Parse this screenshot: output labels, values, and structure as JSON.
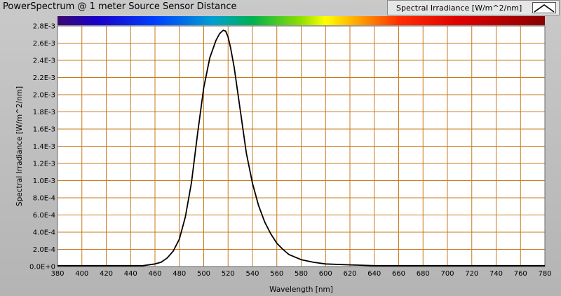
{
  "window": {
    "title": "PowerSpectrum @ 1 meter Source Sensor Distance",
    "legend_label": "Spectral Irradiance [W/m^2/nm]"
  },
  "colors": {
    "grid": "#c8781e",
    "plot_bg": "#ffffff",
    "curve": "#000000"
  },
  "chart_data": {
    "type": "line",
    "title": "PowerSpectrum @ 1 meter Source Sensor Distance",
    "xlabel": "Wavelength [nm]",
    "ylabel": "Spectral Irradiance [W/m^2/nm]",
    "xlim": [
      380,
      780
    ],
    "ylim": [
      0,
      0.0028
    ],
    "grid": true,
    "legend_position": "top-right",
    "color_bar": "visible spectrum gradient above plot",
    "x_ticks": [
      "380",
      "400",
      "420",
      "440",
      "460",
      "480",
      "500",
      "520",
      "540",
      "560",
      "580",
      "600",
      "620",
      "640",
      "660",
      "680",
      "700",
      "720",
      "740",
      "760",
      "780"
    ],
    "y_ticks": [
      "0.0E+0",
      "2.0E-4",
      "4.0E-4",
      "6.0E-4",
      "8.0E-4",
      "1.0E-3",
      "1.2E-3",
      "1.4E-3",
      "1.6E-3",
      "1.8E-3",
      "2.0E-3",
      "2.2E-3",
      "2.4E-3",
      "2.6E-3",
      "2.8E-3"
    ],
    "series": [
      {
        "name": "Spectral Irradiance [W/m^2/nm]",
        "x": [
          380,
          400,
          420,
          440,
          450,
          460,
          465,
          470,
          475,
          480,
          485,
          490,
          495,
          500,
          505,
          510,
          513,
          516,
          518,
          520,
          522,
          525,
          530,
          535,
          540,
          545,
          550,
          555,
          560,
          565,
          570,
          580,
          590,
          600,
          620,
          640,
          660,
          700,
          740,
          780
        ],
        "y": [
          1e-05,
          1e-05,
          1e-05,
          1e-05,
          1e-05,
          3e-05,
          5e-05,
          0.0001,
          0.00018,
          0.00032,
          0.00058,
          0.00098,
          0.00155,
          0.00208,
          0.00243,
          0.00263,
          0.00271,
          0.00275,
          0.00274,
          0.00267,
          0.00255,
          0.00232,
          0.00182,
          0.00132,
          0.00097,
          0.00071,
          0.00052,
          0.00038,
          0.00027,
          0.0002,
          0.00014,
          8e-05,
          5e-05,
          3e-05,
          2e-05,
          1e-05,
          1e-05,
          1e-05,
          1e-05,
          1e-05
        ]
      }
    ]
  }
}
